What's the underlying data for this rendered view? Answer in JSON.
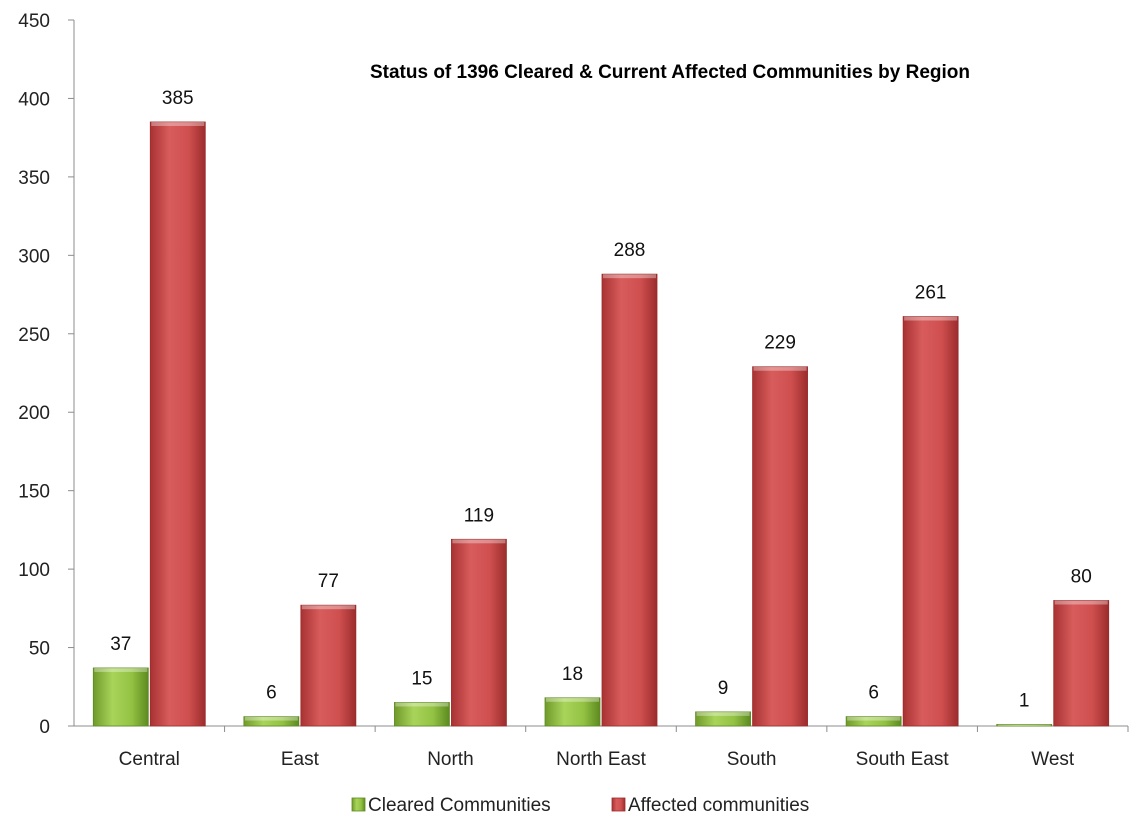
{
  "chart_data": {
    "type": "bar",
    "title": "Status of 1396 Cleared & Current Affected Communities by Region",
    "categories": [
      "Central",
      "East",
      "North",
      "North East",
      "South",
      "South East",
      "West"
    ],
    "series": [
      {
        "name": "Cleared Communities",
        "values": [
          37,
          6,
          15,
          18,
          9,
          6,
          1
        ],
        "color": "#8fbf3e"
      },
      {
        "name": "Affected communities",
        "values": [
          385,
          77,
          119,
          288,
          229,
          261,
          80
        ],
        "color": "#cf4f4f"
      }
    ],
    "y_ticks": [
      "0",
      "50",
      "100",
      "150",
      "200",
      "250",
      "300",
      "350",
      "400",
      "450"
    ],
    "ylim": [
      0,
      450
    ],
    "grid": false,
    "legend_position": "bottom",
    "data_labels": true
  }
}
